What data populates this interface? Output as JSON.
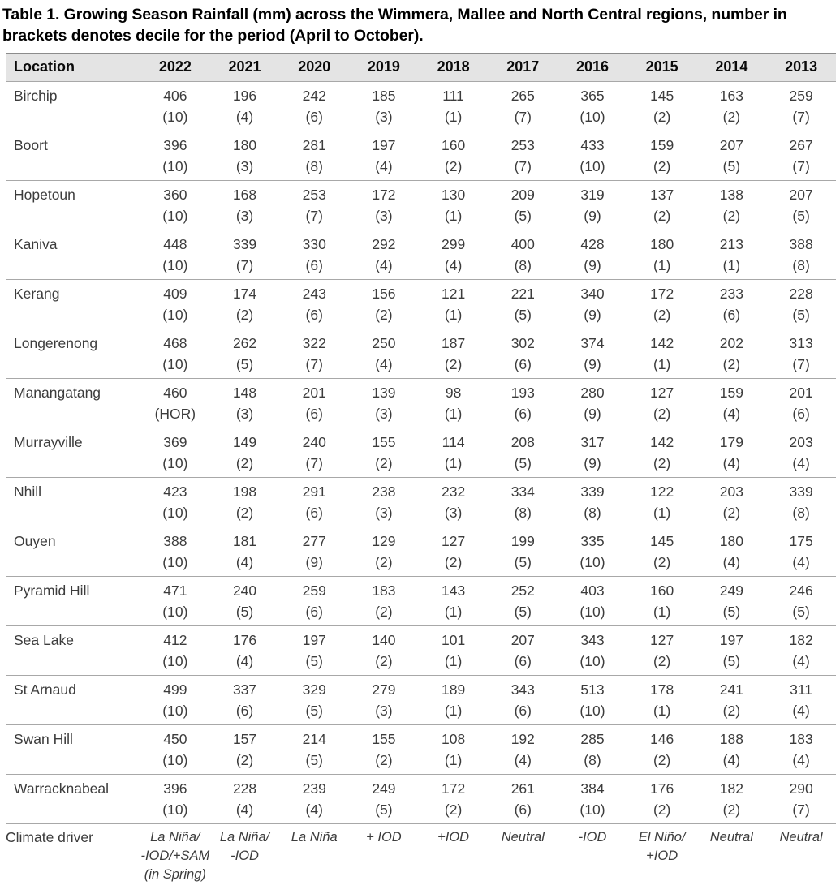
{
  "title": "Table 1. Growing Season Rainfall (mm) across the Wimmera, Mallee and North Central regions, number in brackets denotes decile for the period (April to October).",
  "colors": {
    "header_background": "#e4e4e4",
    "row_border": "#a8a8a8",
    "body_text": "#3c3c3c",
    "title_text": "#000000"
  },
  "table": {
    "columns": [
      "Location",
      "2022",
      "2021",
      "2020",
      "2019",
      "2018",
      "2017",
      "2016",
      "2015",
      "2014",
      "2013"
    ],
    "rows": [
      {
        "location": "Birchip",
        "cells": [
          [
            "406",
            "(10)"
          ],
          [
            "196",
            "(4)"
          ],
          [
            "242",
            "(6)"
          ],
          [
            "185",
            "(3)"
          ],
          [
            "111",
            "(1)"
          ],
          [
            "265",
            "(7)"
          ],
          [
            "365",
            "(10)"
          ],
          [
            "145",
            "(2)"
          ],
          [
            "163",
            "(2)"
          ],
          [
            "259",
            "(7)"
          ]
        ]
      },
      {
        "location": "Boort",
        "cells": [
          [
            "396",
            "(10)"
          ],
          [
            "180",
            "(3)"
          ],
          [
            "281",
            "(8)"
          ],
          [
            "197",
            "(4)"
          ],
          [
            "160",
            "(2)"
          ],
          [
            "253",
            "(7)"
          ],
          [
            "433",
            "(10)"
          ],
          [
            "159",
            "(2)"
          ],
          [
            "207",
            "(5)"
          ],
          [
            "267",
            "(7)"
          ]
        ]
      },
      {
        "location": "Hopetoun",
        "cells": [
          [
            "360",
            "(10)"
          ],
          [
            "168",
            "(3)"
          ],
          [
            "253",
            "(7)"
          ],
          [
            "172",
            "(3)"
          ],
          [
            "130",
            "(1)"
          ],
          [
            "209",
            "(5)"
          ],
          [
            "319",
            "(9)"
          ],
          [
            "137",
            "(2)"
          ],
          [
            "138",
            "(2)"
          ],
          [
            "207",
            "(5)"
          ]
        ]
      },
      {
        "location": "Kaniva",
        "cells": [
          [
            "448",
            "(10)"
          ],
          [
            "339",
            "(7)"
          ],
          [
            "330",
            "(6)"
          ],
          [
            "292",
            "(4)"
          ],
          [
            "299",
            "(4)"
          ],
          [
            "400",
            "(8)"
          ],
          [
            "428",
            "(9)"
          ],
          [
            "180",
            "(1)"
          ],
          [
            "213",
            "(1)"
          ],
          [
            "388",
            "(8)"
          ]
        ]
      },
      {
        "location": "Kerang",
        "cells": [
          [
            "409",
            "(10)"
          ],
          [
            "174",
            "(2)"
          ],
          [
            "243",
            "(6)"
          ],
          [
            "156",
            "(2)"
          ],
          [
            "121",
            "(1)"
          ],
          [
            "221",
            "(5)"
          ],
          [
            "340",
            "(9)"
          ],
          [
            "172",
            "(2)"
          ],
          [
            "233",
            "(6)"
          ],
          [
            "228",
            "(5)"
          ]
        ]
      },
      {
        "location": "Longerenong",
        "cells": [
          [
            "468",
            "(10)"
          ],
          [
            "262",
            "(5)"
          ],
          [
            "322",
            "(7)"
          ],
          [
            "250",
            "(4)"
          ],
          [
            "187",
            "(2)"
          ],
          [
            "302",
            "(6)"
          ],
          [
            "374",
            "(9)"
          ],
          [
            "142",
            "(1)"
          ],
          [
            "202",
            "(2)"
          ],
          [
            "313",
            "(7)"
          ]
        ]
      },
      {
        "location": "Manangatang",
        "cells": [
          [
            "460",
            "(HOR)"
          ],
          [
            "148",
            "(3)"
          ],
          [
            "201",
            "(6)"
          ],
          [
            "139",
            "(3)"
          ],
          [
            "98",
            "(1)"
          ],
          [
            "193",
            "(6)"
          ],
          [
            "280",
            "(9)"
          ],
          [
            "127",
            "(2)"
          ],
          [
            "159",
            "(4)"
          ],
          [
            "201",
            "(6)"
          ]
        ]
      },
      {
        "location": "Murrayville",
        "cells": [
          [
            "369",
            "(10)"
          ],
          [
            "149",
            "(2)"
          ],
          [
            "240",
            "(7)"
          ],
          [
            "155",
            "(2)"
          ],
          [
            "114",
            "(1)"
          ],
          [
            "208",
            "(5)"
          ],
          [
            "317",
            "(9)"
          ],
          [
            "142",
            "(2)"
          ],
          [
            "179",
            "(4)"
          ],
          [
            "203",
            "(4)"
          ]
        ]
      },
      {
        "location": "Nhill",
        "cells": [
          [
            "423",
            "(10)"
          ],
          [
            "198",
            "(2)"
          ],
          [
            "291",
            "(6)"
          ],
          [
            "238",
            "(3)"
          ],
          [
            "232",
            "(3)"
          ],
          [
            "334",
            "(8)"
          ],
          [
            "339",
            "(8)"
          ],
          [
            "122",
            "(1)"
          ],
          [
            "203",
            "(2)"
          ],
          [
            "339",
            "(8)"
          ]
        ]
      },
      {
        "location": "Ouyen",
        "cells": [
          [
            "388",
            "(10)"
          ],
          [
            "181",
            "(4)"
          ],
          [
            "277",
            "(9)"
          ],
          [
            "129",
            "(2)"
          ],
          [
            "127",
            "(2)"
          ],
          [
            "199",
            "(5)"
          ],
          [
            "335",
            "(10)"
          ],
          [
            "145",
            "(2)"
          ],
          [
            "180",
            "(4)"
          ],
          [
            "175",
            "(4)"
          ]
        ]
      },
      {
        "location": "Pyramid Hill",
        "cells": [
          [
            "471",
            "(10)"
          ],
          [
            "240",
            "(5)"
          ],
          [
            "259",
            "(6)"
          ],
          [
            "183",
            "(2)"
          ],
          [
            "143",
            "(1)"
          ],
          [
            "252",
            "(5)"
          ],
          [
            "403",
            "(10)"
          ],
          [
            "160",
            "(1)"
          ],
          [
            "249",
            "(5)"
          ],
          [
            "246",
            "(5)"
          ]
        ]
      },
      {
        "location": "Sea Lake",
        "cells": [
          [
            "412",
            "(10)"
          ],
          [
            "176",
            "(4)"
          ],
          [
            "197",
            "(5)"
          ],
          [
            "140",
            "(2)"
          ],
          [
            "101",
            "(1)"
          ],
          [
            "207",
            "(6)"
          ],
          [
            "343",
            "(10)"
          ],
          [
            "127",
            "(2)"
          ],
          [
            "197",
            "(5)"
          ],
          [
            "182",
            "(4)"
          ]
        ]
      },
      {
        "location": "St Arnaud",
        "cells": [
          [
            "499",
            "(10)"
          ],
          [
            "337",
            "(6)"
          ],
          [
            "329",
            "(5)"
          ],
          [
            "279",
            "(3)"
          ],
          [
            "189",
            "(1)"
          ],
          [
            "343",
            "(6)"
          ],
          [
            "513",
            "(10)"
          ],
          [
            "178",
            "(1)"
          ],
          [
            "241",
            "(2)"
          ],
          [
            "311",
            "(4)"
          ]
        ]
      },
      {
        "location": "Swan Hill",
        "cells": [
          [
            "450",
            "(10)"
          ],
          [
            "157",
            "(2)"
          ],
          [
            "214",
            "(5)"
          ],
          [
            "155",
            "(2)"
          ],
          [
            "108",
            "(1)"
          ],
          [
            "192",
            "(4)"
          ],
          [
            "285",
            "(8)"
          ],
          [
            "146",
            "(2)"
          ],
          [
            "188",
            "(4)"
          ],
          [
            "183",
            "(4)"
          ]
        ]
      },
      {
        "location": "Warracknabeal",
        "cells": [
          [
            "396",
            "(10)"
          ],
          [
            "228",
            "(4)"
          ],
          [
            "239",
            "(4)"
          ],
          [
            "249",
            "(5)"
          ],
          [
            "172",
            "(2)"
          ],
          [
            "261",
            "(6)"
          ],
          [
            "384",
            "(10)"
          ],
          [
            "176",
            "(2)"
          ],
          [
            "182",
            "(2)"
          ],
          [
            "290",
            "(7)"
          ]
        ]
      }
    ],
    "climate_row": {
      "label": "Climate driver",
      "drivers": [
        [
          "La Niña/",
          "-IOD/+SAM",
          "(in Spring)"
        ],
        [
          "La Niña/",
          "-IOD"
        ],
        [
          "La Niña"
        ],
        [
          "+ IOD"
        ],
        [
          "+IOD"
        ],
        [
          "Neutral"
        ],
        [
          "-IOD"
        ],
        [
          "El Niño/",
          "+IOD"
        ],
        [
          "Neutral"
        ],
        [
          "Neutral"
        ]
      ]
    }
  }
}
